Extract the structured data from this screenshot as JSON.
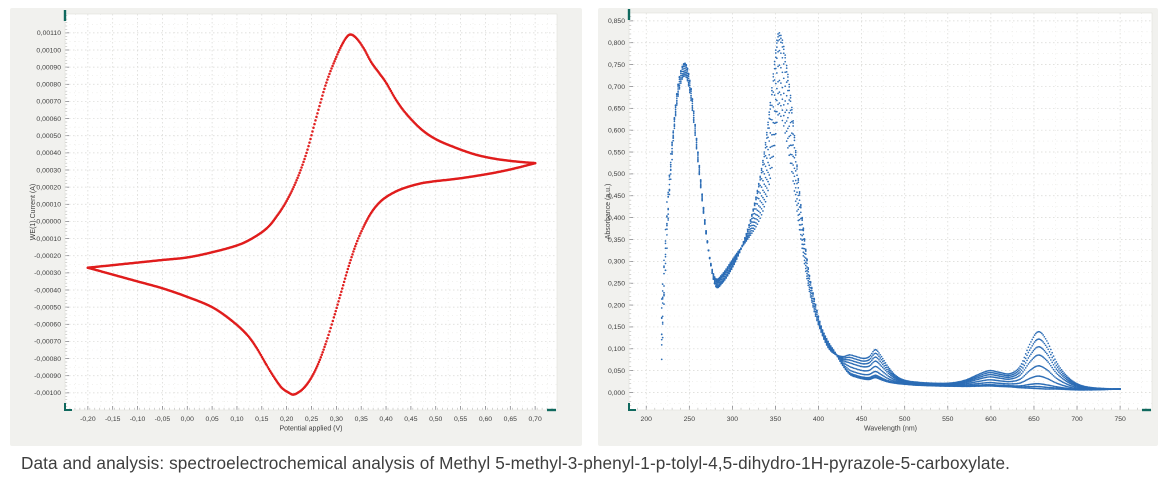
{
  "caption": "Data and analysis: spectroelectrochemical analysis of Methyl 5-methyl-3-phenyl-1-p-tolyl-4,5-dihydro-1H-pyrazole-5-carboxylate.",
  "colors": {
    "cv_trace": "#e01d1d",
    "uv_trace": "#2b6cb5",
    "panel_background": "#f1f1ee",
    "plot_background": "#ffffff",
    "grid_major": "#d7d7d3",
    "grid_minor": "#e8e8e4",
    "axis_end_marker": "#10695e",
    "tick_text": "#3f3f3f"
  },
  "chart_data": [
    {
      "type": "line",
      "name": "cyclic-voltammogram",
      "xlabel": "Potential applied (V)",
      "ylabel": "WE(1).Current (A)",
      "xlim": [
        -0.246,
        0.744
      ],
      "ylim": [
        -0.0011,
        0.00121
      ],
      "x_ticks": [
        -0.2,
        -0.15,
        -0.1,
        -0.05,
        0.0,
        0.05,
        0.1,
        0.15,
        0.2,
        0.25,
        0.3,
        0.35,
        0.4,
        0.45,
        0.5,
        0.55,
        0.6,
        0.65,
        0.7
      ],
      "y_ticks": [
        0.0011,
        0.001,
        0.0009,
        0.0008,
        0.0007,
        0.0006,
        0.0005,
        0.0004,
        0.0003,
        0.0002,
        0.0001,
        0.0,
        -0.0001,
        -0.0002,
        -0.0003,
        -0.0004,
        -0.0005,
        -0.0006,
        -0.0007,
        -0.0008,
        -0.0009,
        -0.001
      ],
      "tick_format": {
        "x_decimals": 2,
        "y_decimals": 5,
        "decimal_separator": ","
      },
      "grid": true,
      "legend": "none",
      "anodic_peak": {
        "potential_V": 0.33,
        "current_A": 0.00109
      },
      "cathodic_peak": {
        "potential_V": 0.21,
        "current_A": -0.00101
      },
      "series": [
        {
          "name": "forward-sweep",
          "x": [
            -0.2,
            -0.15,
            -0.1,
            -0.05,
            0.0,
            0.05,
            0.1,
            0.13,
            0.16,
            0.18,
            0.2,
            0.22,
            0.24,
            0.26,
            0.28,
            0.3,
            0.315,
            0.327,
            0.34,
            0.355,
            0.37,
            0.385,
            0.4,
            0.42,
            0.44,
            0.47,
            0.5,
            0.54,
            0.58,
            0.62,
            0.66,
            0.7
          ],
          "y": [
            -0.00027,
            -0.000255,
            -0.00024,
            -0.000225,
            -0.00021,
            -0.00018,
            -0.00014,
            -0.0001,
            -4e-05,
            3e-05,
            0.00012,
            0.00024,
            0.0004,
            0.00061,
            0.00081,
            0.00096,
            0.00105,
            0.00109,
            0.00107,
            0.00101,
            0.00093,
            0.00087,
            0.00081,
            0.00071,
            0.00063,
            0.00054,
            0.00048,
            0.00043,
            0.00039,
            0.000365,
            0.00035,
            0.00034
          ]
        },
        {
          "name": "reverse-sweep",
          "x": [
            0.7,
            0.66,
            0.62,
            0.58,
            0.54,
            0.5,
            0.47,
            0.44,
            0.42,
            0.4,
            0.385,
            0.37,
            0.355,
            0.34,
            0.325,
            0.31,
            0.295,
            0.28,
            0.265,
            0.25,
            0.235,
            0.222,
            0.213,
            0.205,
            0.19,
            0.175,
            0.16,
            0.14,
            0.12,
            0.09,
            0.05,
            0.0,
            -0.05,
            -0.1,
            -0.15,
            -0.2
          ],
          "y": [
            0.00034,
            0.00031,
            0.000285,
            0.000265,
            0.000248,
            0.000235,
            0.000222,
            0.000198,
            0.000175,
            0.000142,
            0.000105,
            5e-05,
            -3e-05,
            -0.00013,
            -0.00026,
            -0.00041,
            -0.00056,
            -0.0007,
            -0.00082,
            -0.00091,
            -0.00097,
            -0.001,
            -0.00101,
            -0.001,
            -0.00097,
            -0.00091,
            -0.00084,
            -0.00074,
            -0.00066,
            -0.00058,
            -0.0005,
            -0.00044,
            -0.00039,
            -0.00035,
            -0.00031,
            -0.00027
          ]
        }
      ]
    },
    {
      "type": "line",
      "name": "uv-vis-absorbance-spectra",
      "xlabel": "Wavelength (nm)",
      "ylabel": "Absorbance (a.u.)",
      "xlim": [
        180,
        787
      ],
      "ylim": [
        -0.04,
        0.868
      ],
      "x_ticks": [
        200,
        250,
        300,
        350,
        400,
        450,
        500,
        550,
        600,
        650,
        700,
        750
      ],
      "y_ticks": [
        0.85,
        0.8,
        0.75,
        0.7,
        0.65,
        0.6,
        0.55,
        0.5,
        0.45,
        0.4,
        0.35,
        0.3,
        0.25,
        0.2,
        0.15,
        0.1,
        0.05,
        0.0
      ],
      "tick_format": {
        "x_decimals": 0,
        "y_decimals": 3,
        "decimal_separator": ","
      },
      "grid": true,
      "legend": "none",
      "num_scans": 9,
      "scan_fractions": [
        0,
        0.035,
        0.085,
        0.22,
        0.4,
        0.59,
        0.735,
        0.87,
        1.0
      ],
      "wavelength_nm": [
        218,
        224,
        230,
        237,
        245,
        252,
        260,
        268,
        275,
        281,
        288,
        296,
        305,
        313,
        321,
        329,
        337,
        344,
        349,
        353,
        358,
        363,
        369,
        375,
        381,
        388,
        395,
        403,
        411,
        419,
        428,
        436,
        444,
        452,
        459,
        466,
        473,
        481,
        490,
        500,
        512,
        525,
        540,
        555,
        570,
        584,
        598,
        610,
        622,
        634,
        645,
        655,
        665,
        676,
        688,
        700,
        714,
        732,
        750
      ],
      "absorbance_first_scan": [
        0.155,
        0.39,
        0.565,
        0.705,
        0.753,
        0.695,
        0.55,
        0.395,
        0.29,
        0.242,
        0.25,
        0.272,
        0.305,
        0.345,
        0.395,
        0.462,
        0.55,
        0.663,
        0.757,
        0.82,
        0.806,
        0.748,
        0.652,
        0.52,
        0.4,
        0.285,
        0.215,
        0.152,
        0.117,
        0.092,
        0.062,
        0.042,
        0.035,
        0.031,
        0.03,
        0.034,
        0.029,
        0.024,
        0.021,
        0.019,
        0.017,
        0.016,
        0.015,
        0.0145,
        0.014,
        0.0145,
        0.015,
        0.014,
        0.013,
        0.011,
        0.01,
        0.009,
        0.008,
        0.008,
        0.007,
        0.006,
        0.006,
        0.007,
        0.008
      ],
      "absorbance_last_scan": [
        0.135,
        0.37,
        0.545,
        0.678,
        0.724,
        0.668,
        0.528,
        0.385,
        0.295,
        0.26,
        0.27,
        0.292,
        0.318,
        0.338,
        0.36,
        0.385,
        0.425,
        0.49,
        0.565,
        0.635,
        0.622,
        0.575,
        0.505,
        0.415,
        0.33,
        0.245,
        0.185,
        0.138,
        0.103,
        0.088,
        0.082,
        0.086,
        0.082,
        0.078,
        0.082,
        0.098,
        0.082,
        0.058,
        0.038,
        0.028,
        0.024,
        0.022,
        0.021,
        0.022,
        0.028,
        0.04,
        0.05,
        0.046,
        0.043,
        0.06,
        0.11,
        0.139,
        0.118,
        0.07,
        0.038,
        0.02,
        0.012,
        0.009,
        0.008
      ]
    }
  ]
}
